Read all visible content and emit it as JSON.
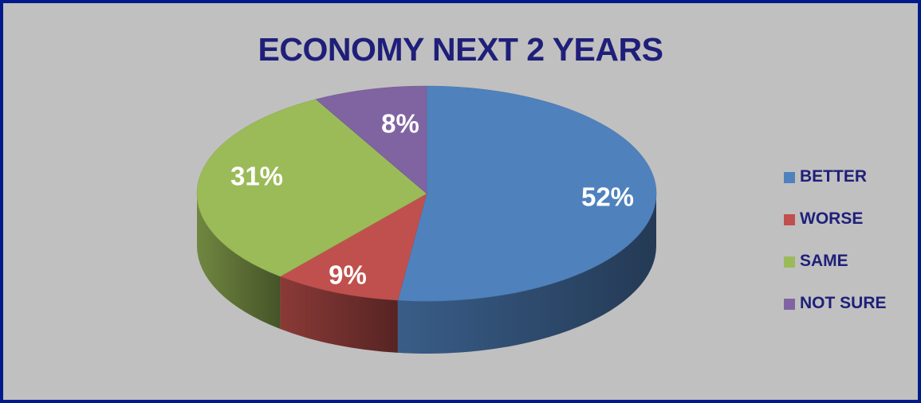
{
  "chart_data": {
    "type": "pie",
    "title": "ECONOMY NEXT 2 YEARS",
    "categories": [
      "BETTER",
      "WORSE",
      "SAME",
      "NOT SURE"
    ],
    "values": [
      52,
      9,
      31,
      8
    ],
    "data_labels": [
      "52%",
      "9%",
      "31%",
      "8%"
    ],
    "colors": [
      "#4f81bd",
      "#c0504d",
      "#9bbb59",
      "#8064a2"
    ],
    "legend_position": "right",
    "style": "3d"
  }
}
